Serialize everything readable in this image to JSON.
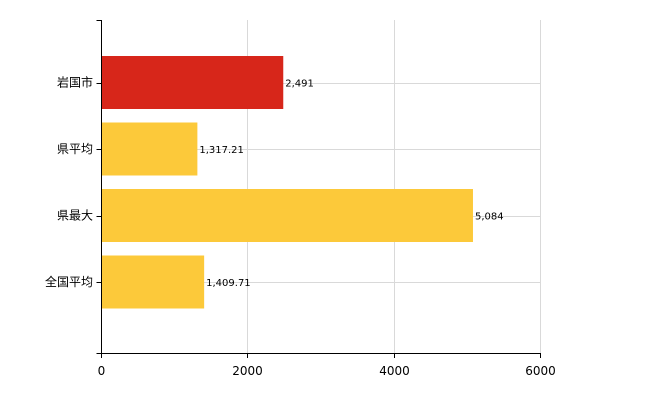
{
  "chart_data": {
    "type": "bar",
    "orientation": "horizontal",
    "categories": [
      "岩国市",
      "県平均",
      "県最大",
      "全国平均"
    ],
    "values": [
      2491,
      1317.21,
      5084,
      1409.71
    ],
    "value_labels": [
      "2,491",
      "1,317.21",
      "5,084",
      "1,409.71"
    ],
    "colors": [
      "#d7261a",
      "#fcc93a",
      "#fcc93a",
      "#fcc93a"
    ],
    "xlim": [
      0,
      6000
    ],
    "xticks": [
      0,
      2000,
      4000,
      6000
    ],
    "xtick_labels": [
      "0",
      "2000",
      "4000",
      "6000"
    ],
    "title": "",
    "xlabel": "",
    "ylabel": "",
    "grid": true,
    "legend": false
  }
}
